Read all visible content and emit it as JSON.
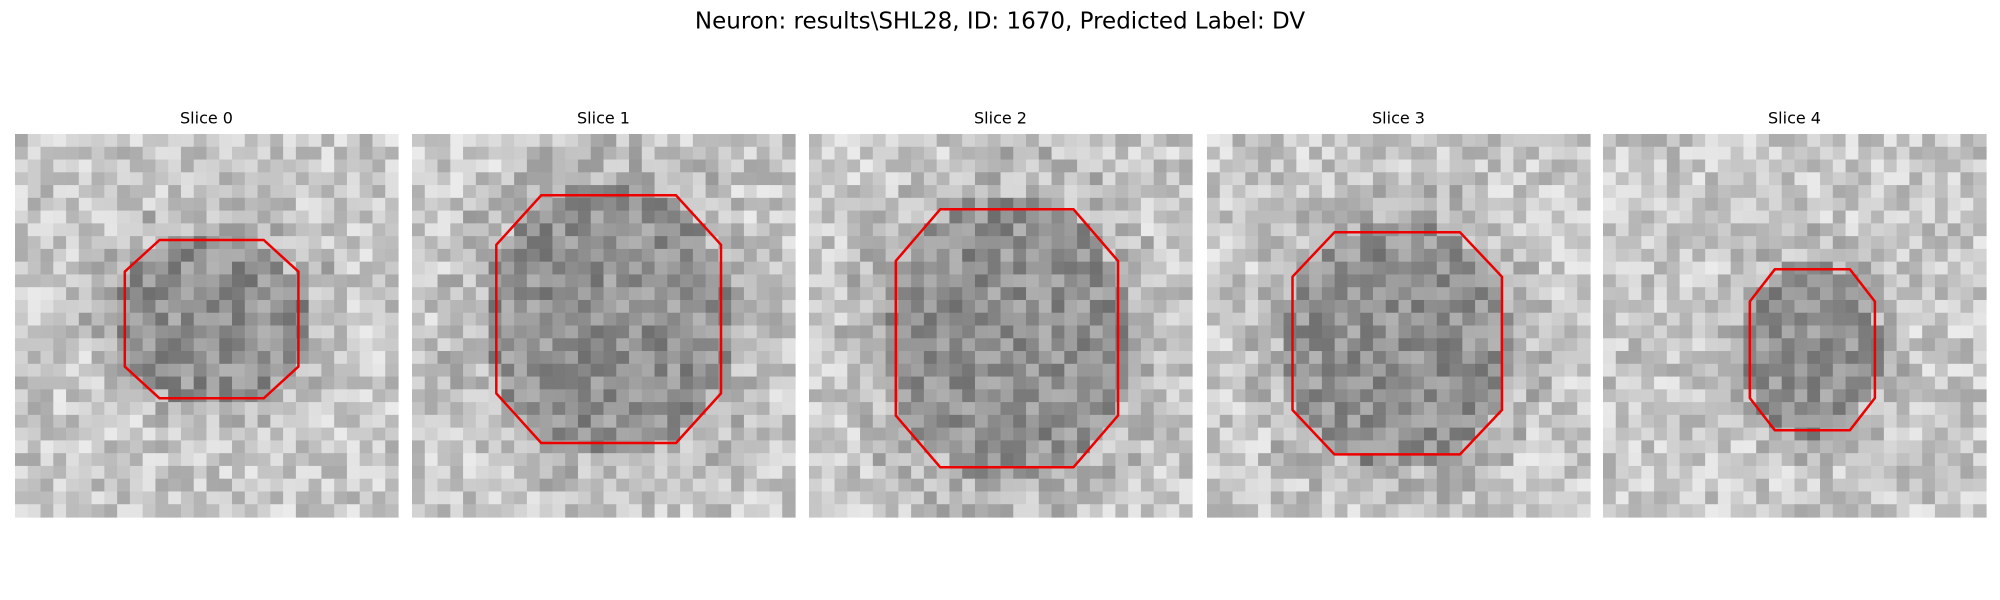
{
  "figure": {
    "title": "Neuron: results\\SHL28, ID: 1670, Predicted Label: DV",
    "panels": [
      {
        "title": "Slice 0"
      },
      {
        "title": "Slice 1"
      },
      {
        "title": "Slice 2"
      },
      {
        "title": "Slice 3"
      },
      {
        "title": "Slice 4"
      }
    ]
  }
}
